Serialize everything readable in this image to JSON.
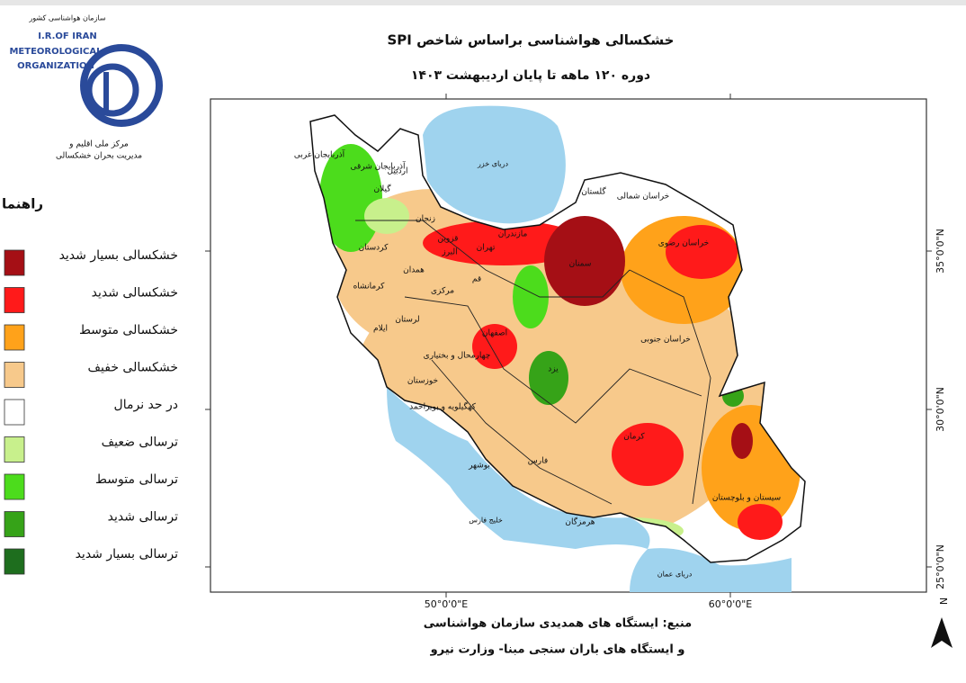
{
  "logo": {
    "org_fa": "سازمان هواشناسی کشور",
    "line1": "I.R.OF IRAN",
    "line2": "METEOROLOGICAL",
    "line3": "ORGANIZATION",
    "center1": "مرکز ملی اقلیم و",
    "center2": "مدیریت بحران خشکسالی"
  },
  "title": "خشکسالی هواشناسی براساس شاخص SPI",
  "subtitle": "دوره ۱۲۰ ماهه تا پایان اردیبهشت ۱۴۰۳",
  "legend": {
    "title": "راهنما",
    "items": [
      {
        "label": "خشکسالی بسیار شدید",
        "color": "#a50f15"
      },
      {
        "label": "خشکسالی شدید",
        "color": "#ff1a1a"
      },
      {
        "label": "خشکسالی متوسط",
        "color": "#ffa21a"
      },
      {
        "label": "خشکسالی خفیف",
        "color": "#f7c98b"
      },
      {
        "label": "در حد نرمال",
        "color": "#ffffff"
      },
      {
        "label": "ترسالی ضعیف",
        "color": "#c8f08c"
      },
      {
        "label": "ترسالی متوسط",
        "color": "#4cdc1c"
      },
      {
        "label": "ترسالی شدید",
        "color": "#36a318"
      },
      {
        "label": "ترسالی بسیار شدید",
        "color": "#1e6e1e"
      }
    ]
  },
  "map": {
    "water_labels": [
      "دریای خزر",
      "خلیج فارس",
      "دریای عمان"
    ],
    "province_labels": [
      "آذربایجان غربی",
      "آذربایجان شرقی",
      "اردبیل",
      "زنجان",
      "گیلان",
      "مازندران",
      "گلستان",
      "خراسان شمالی",
      "خراسان رضوی",
      "سمنان",
      "تهران",
      "قزوین",
      "البرز",
      "قم",
      "مرکزی",
      "همدان",
      "کردستان",
      "کرمانشاه",
      "لرستان",
      "ایلام",
      "خوزستان",
      "چهارمحال و بختیاری",
      "اصفهان",
      "یزد",
      "کهگیلویه و بویراحمد",
      "بوشهر",
      "فارس",
      "کرمان",
      "هرمزگان",
      "سیستان و بلوچستان",
      "خراسان جنوبی"
    ],
    "lon_labels": [
      "50°0'0\"E",
      "60°0'0\"E"
    ],
    "lat_labels": [
      "35°0'0\"N",
      "30°0'0\"N",
      "25°0'0\"N"
    ]
  },
  "source": [
    "منبع: ایستگاه های همدیدی سازمان هواشناسی",
    "و ایستگاه های باران سنجی مبنا- وزارت نیرو"
  ],
  "north": "N"
}
